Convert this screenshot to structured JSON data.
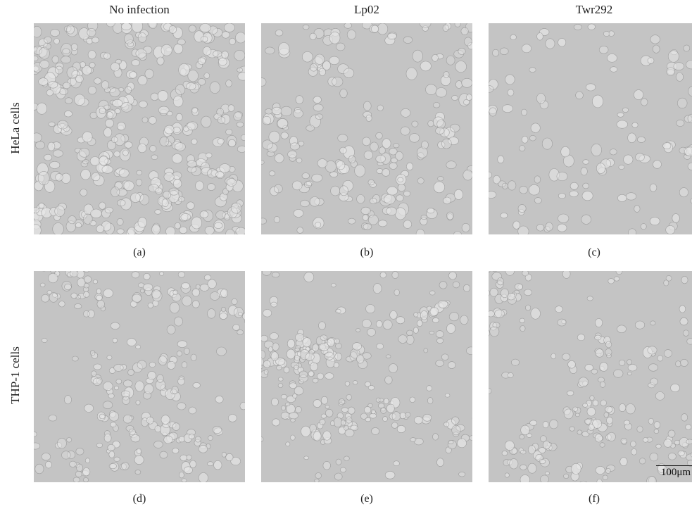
{
  "columns": [
    "No infection",
    "Lp02",
    "Twr292"
  ],
  "rows": [
    "HeLa cells",
    "THP-1 cells"
  ],
  "captions": [
    "(a)",
    "(b)",
    "(c)",
    "(d)",
    "(e)",
    "(f)"
  ],
  "scale_bar": "100μm",
  "colors": {
    "background": "#c4c4c4",
    "cell": "#e6e6e6",
    "edge": "#8a8a8a"
  }
}
